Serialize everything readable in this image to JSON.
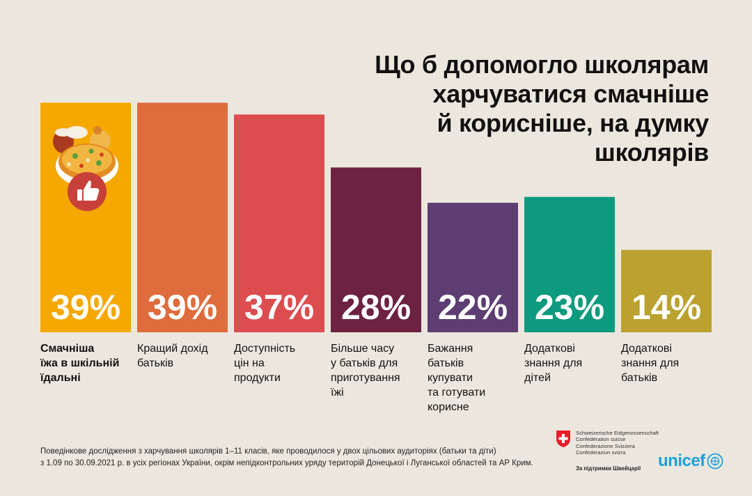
{
  "title_lines": [
    "Що б допомогло школярам",
    "харчуватися смачніше",
    "й корисніше, на думку",
    "школярів"
  ],
  "chart_data": {
    "type": "bar",
    "title": "Що б допомогло школярам харчуватися смачніше й корисніше, на думку школярів",
    "unit": "%",
    "ylim": [
      0,
      40
    ],
    "grid": false,
    "categories": [
      "Смачніша їжа в шкільній їдальні",
      "Кращий дохід батьків",
      "Доступність цін на продукти",
      "Більше часу у батьків для приготування їжі",
      "Бажання батьків купувати та готувати корисне",
      "Додаткові знання для дітей",
      "Додаткові знання для батьків"
    ],
    "values": [
      39,
      39,
      37,
      28,
      22,
      23,
      14
    ],
    "value_labels": [
      "39%",
      "39%",
      "37%",
      "28%",
      "22%",
      "23%",
      "14%"
    ],
    "colors": [
      "#f5a800",
      "#df6c3c",
      "#dc4d4f",
      "#6c2240",
      "#5d3d72",
      "#0d9a7e",
      "#bba12f"
    ]
  },
  "category_lines": [
    [
      "Смачніша",
      "їжа в шкільній",
      "їдальні"
    ],
    [
      "Кращий дохід",
      "батьків"
    ],
    [
      "Доступність",
      "цін на",
      "продукти"
    ],
    [
      "Більше часу",
      "у батьків для",
      "приготування",
      "їжі"
    ],
    [
      "Бажання",
      "батьків",
      "купувати",
      "та готувати",
      "корисне"
    ],
    [
      "Додаткові",
      "знання для",
      "дітей"
    ],
    [
      "Додаткові",
      "знання для",
      "батьків"
    ]
  ],
  "footnote_lines": [
    "Поведінкове дослідження з харчування школярів 1–11 класів, яке проводилося у двох цільових аудиторіях (батьки та діти)",
    "з 1.09 по 30.09.2021 р. в усіх регіонах України, окрім непідконтрольних уряду територій Донецької і Луганської областей та АР Крим."
  ],
  "swiss": {
    "names": [
      "Schweizerische Eidgenossenschaft",
      "Confédération suisse",
      "Confederazione Svizzera",
      "Confederaziun svizra"
    ],
    "support": "За підтримки Швейцарії",
    "flag_color": "#e4202a"
  },
  "unicef": {
    "word": "unicef",
    "color": "#1ca0dc"
  },
  "icons": {
    "food": "food-plate-icon",
    "like": "thumbs-up-icon"
  }
}
